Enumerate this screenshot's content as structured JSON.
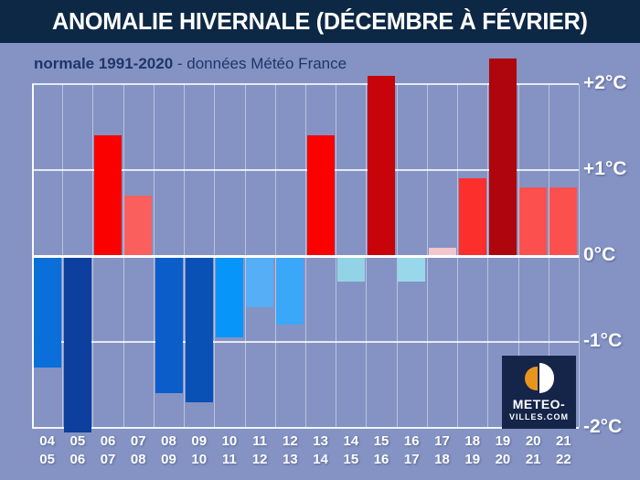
{
  "header": {
    "title": "ANOMALIE HIVERNALE (DÉCEMBRE À FÉVRIER)"
  },
  "subtitle": {
    "bold": "normale 1991-2020",
    "rest": " - données Météo France"
  },
  "chart_data": {
    "type": "bar",
    "title": "ANOMALIE HIVERNALE (DÉCEMBRE À FÉVRIER)",
    "subtitle_normal": "normale 1991-2020",
    "source": "données Météo France",
    "unit": "°C",
    "categories": [
      "04/05",
      "05/06",
      "06/07",
      "07/08",
      "08/09",
      "09/10",
      "10/11",
      "11/12",
      "12/13",
      "13/14",
      "14/15",
      "15/16",
      "16/17",
      "17/18",
      "18/19",
      "19/20",
      "20/21",
      "21/22"
    ],
    "values": [
      -1.3,
      -2.05,
      1.4,
      0.7,
      -1.6,
      -1.7,
      -0.95,
      -0.6,
      -0.8,
      1.4,
      -0.3,
      2.1,
      -0.3,
      0.1,
      0.9,
      2.3,
      0.8,
      0.8
    ],
    "bar_colors": [
      "#0a6fd8",
      "#0c3f9e",
      "#fa0100",
      "#fa5f5d",
      "#0b5ec9",
      "#0a51b6",
      "#0895fa",
      "#56aef7",
      "#3aa7f8",
      "#fa0100",
      "#92d4e6",
      "#c60409",
      "#98d8ea",
      "#f3c5cd",
      "#fc2f2d",
      "#ae060c",
      "#fc504e",
      "#fc504e"
    ],
    "yticks": [
      {
        "label": "+2°C",
        "value": 2
      },
      {
        "label": "+1°C",
        "value": 1
      },
      {
        "label": "0°C",
        "value": 0
      },
      {
        "label": "-1°C",
        "value": -1
      },
      {
        "label": "-2°C",
        "value": -2
      }
    ],
    "ylim": [
      -2.2,
      2.4
    ],
    "grid": true,
    "legend": false
  },
  "colors": {
    "background": "#8493c3",
    "title_bar": "#0d2845",
    "subtitle_text": "#1e3569",
    "gridline": "#ffffff",
    "axis_label": "#ffffff",
    "logo_box": "#142549",
    "logo_orange": "#e8941f"
  },
  "logo": {
    "line1": "METEO-",
    "line2": "VILLES.COM"
  }
}
